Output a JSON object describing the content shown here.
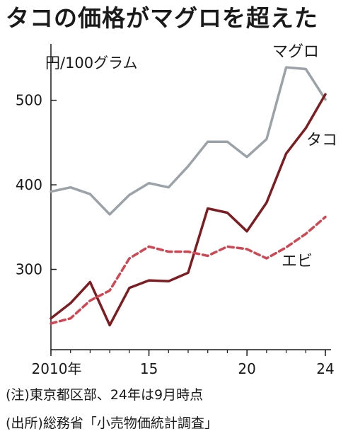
{
  "title": "タコの価格がマグロを超えた",
  "notes": {
    "note1": "(注)東京都区部、24年は9月時点",
    "note2": "(出所)総務省「小売物価統計調査」"
  },
  "chart_data": {
    "type": "line",
    "title": "タコの価格がマグロを超えた",
    "ylabel": "円/100グラム",
    "ylim": [
      205,
      560
    ],
    "xlim": [
      2010,
      2024
    ],
    "x": [
      2010,
      2011,
      2012,
      2013,
      2014,
      2015,
      2016,
      2017,
      2018,
      2019,
      2020,
      2021,
      2022,
      2023,
      2024
    ],
    "x_ticks": [
      2010,
      2015,
      2020,
      2024
    ],
    "x_tick_labels": [
      "2010年",
      "15",
      "20",
      "24"
    ],
    "y_ticks": [
      300,
      400,
      500
    ],
    "y_tick_labels": [
      "300",
      "400",
      "500"
    ],
    "grid": false,
    "series": [
      {
        "name": "マグロ",
        "color": "#9ba3a8",
        "dash": "solid",
        "values": [
          392,
          397,
          389,
          365,
          388,
          402,
          397,
          422,
          451,
          451,
          433,
          454,
          539,
          537,
          501
        ]
      },
      {
        "name": "タコ",
        "color": "#7d1d22",
        "dash": "solid",
        "values": [
          242,
          260,
          285,
          234,
          278,
          287,
          286,
          296,
          372,
          367,
          345,
          379,
          437,
          467,
          507
        ]
      },
      {
        "name": "エビ",
        "color": "#d14652",
        "dash": "dashed",
        "values": [
          236,
          242,
          263,
          275,
          313,
          327,
          321,
          321,
          316,
          327,
          324,
          313,
          326,
          342,
          362
        ]
      }
    ]
  }
}
